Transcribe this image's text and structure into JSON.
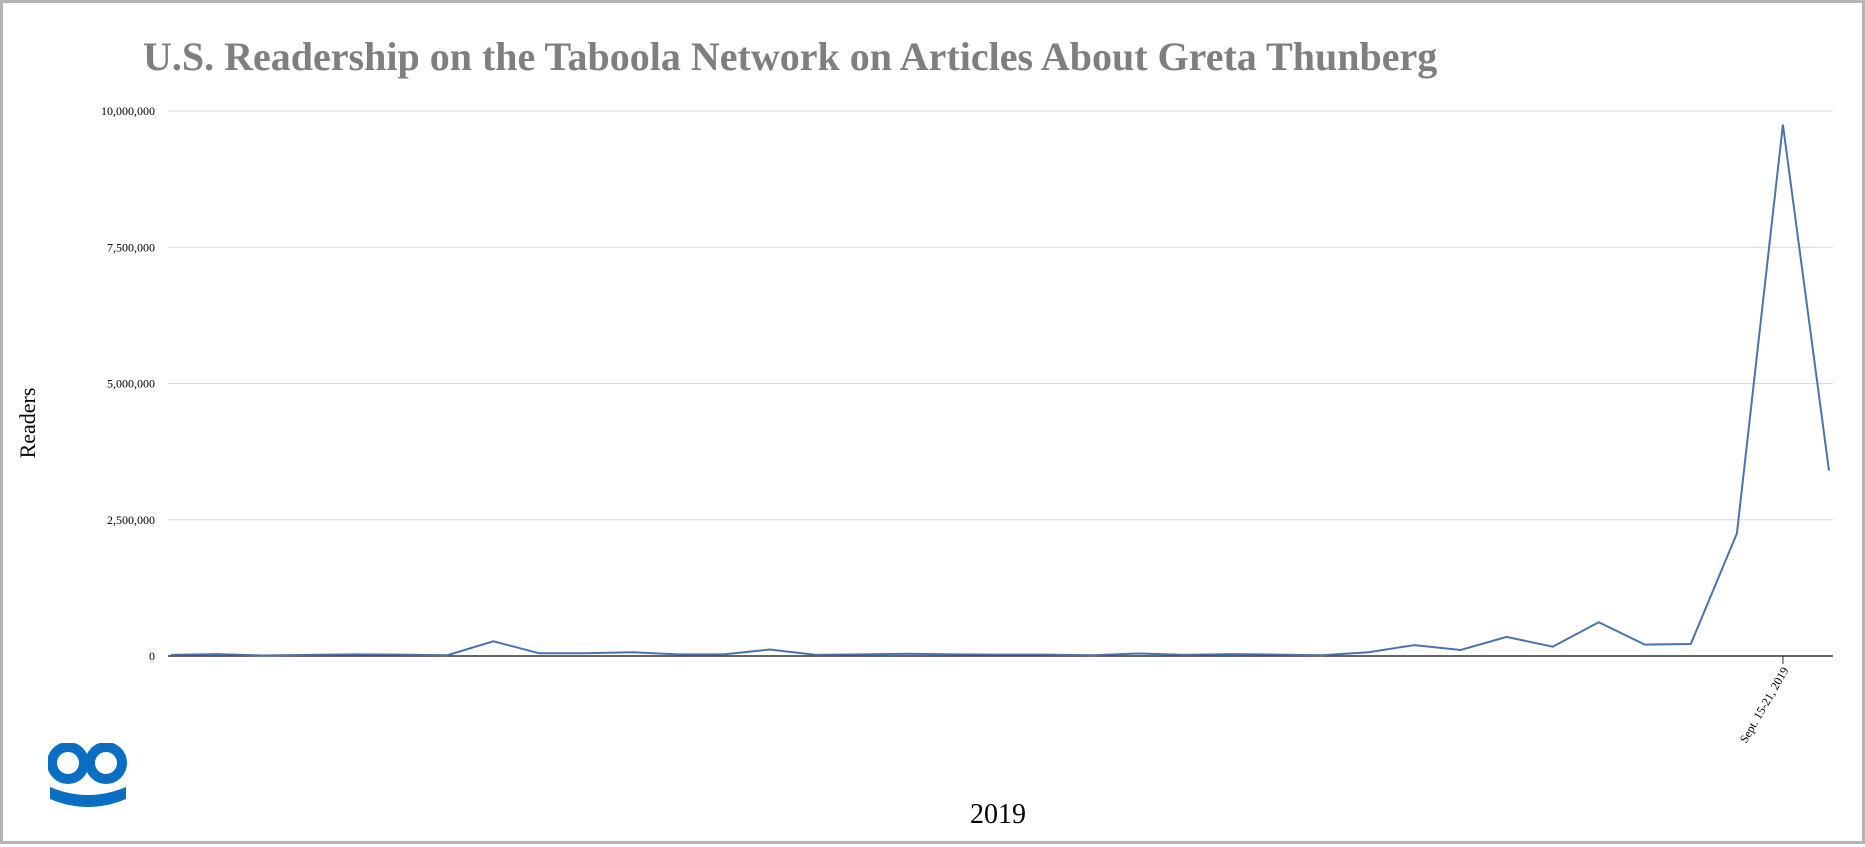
{
  "chart_data": {
    "type": "line",
    "title": "U.S. Readership on the Taboola Network on Articles About Greta Thunberg",
    "xlabel": "2019",
    "ylabel": "Readers",
    "ylim": [
      0,
      10000000
    ],
    "yticks": [
      0,
      2500000,
      5000000,
      7500000,
      10000000
    ],
    "ytick_labels": [
      "0",
      "2,500,000",
      "5,000,000",
      "7,500,000",
      "10,000,000"
    ],
    "grid": true,
    "x_tick_labels": [
      {
        "index": 35,
        "label": "Sept. 15-21, 2019"
      }
    ],
    "series": [
      {
        "color": "#4a74a9",
        "values": [
          20000,
          35000,
          10000,
          20000,
          30000,
          25000,
          15000,
          270000,
          50000,
          50000,
          70000,
          30000,
          30000,
          120000,
          20000,
          30000,
          40000,
          30000,
          25000,
          25000,
          15000,
          45000,
          20000,
          35000,
          25000,
          15000,
          70000,
          200000,
          110000,
          350000,
          170000,
          620000,
          210000,
          220000,
          2250000,
          9750000,
          3400000
        ]
      }
    ]
  },
  "logo": {
    "name": "taboola-logo",
    "color": "#0a6fc2"
  }
}
